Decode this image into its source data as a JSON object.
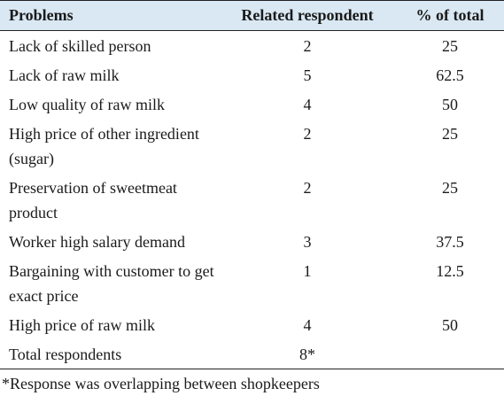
{
  "table": {
    "headers": [
      "Problems",
      "Related respondent",
      "% of total"
    ],
    "rows": [
      {
        "problem": "Lack of skilled person",
        "respondent": "2",
        "percent": "25"
      },
      {
        "problem": "Lack of raw milk",
        "respondent": "5",
        "percent": "62.5"
      },
      {
        "problem": "Low quality of raw milk",
        "respondent": "4",
        "percent": "50"
      },
      {
        "problem": "High price of other ingredient (sugar)",
        "respondent": "2",
        "percent": "25"
      },
      {
        "problem": "Preservation of sweetmeat product",
        "respondent": "2",
        "percent": "25"
      },
      {
        "problem": "Worker high salary demand",
        "respondent": "3",
        "percent": "37.5"
      },
      {
        "problem": "Bargaining with customer to get exact price",
        "respondent": "1",
        "percent": "12.5"
      },
      {
        "problem": "High price of raw milk",
        "respondent": "4",
        "percent": "50"
      },
      {
        "problem": "Total respondents",
        "respondent": "8*",
        "percent": ""
      }
    ]
  },
  "footnote": "*Response was overlapping between shopkeepers"
}
